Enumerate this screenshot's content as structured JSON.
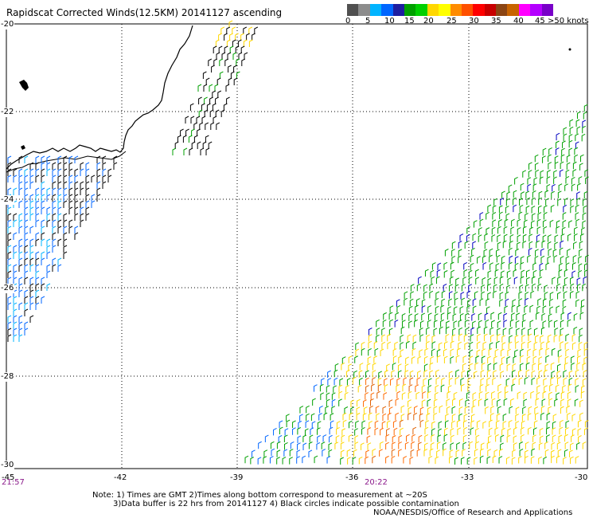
{
  "title": "Rapidscat Corrected Winds(12.5KM) 20141127 ascending",
  "colorbar": {
    "colors": [
      "#505050",
      "#8c8c8c",
      "#00b4ff",
      "#0066ff",
      "#1e1ea0",
      "#00a000",
      "#00d000",
      "#ffd700",
      "#ffff00",
      "#ff8c00",
      "#ff5000",
      "#ff0000",
      "#c80000",
      "#8b4513",
      "#c86400",
      "#ff00ff",
      "#b400ff",
      "#7800c8"
    ],
    "labels": [
      "0",
      "5",
      "10",
      "15",
      "20",
      "25",
      "30",
      "35",
      "40",
      "45",
      ">50 knots"
    ]
  },
  "y_axis_labels": [
    "-20",
    "-22",
    "-24",
    "-26",
    "-28",
    "-30"
  ],
  "x_axis_labels": [
    "-45",
    "-42",
    "-39",
    "-36",
    "-33",
    "-30"
  ],
  "times": [
    "21:57",
    "20:22"
  ],
  "notes": [
    "Note: 1) Times are GMT 2)Times along bottom correspond to measurement at ~20S",
    "3)Data buffer is 22 hrs from 20141127 4) Black circles indicate possible contamination",
    "NOAA/NESDIS/Office of Research and Applications"
  ]
}
